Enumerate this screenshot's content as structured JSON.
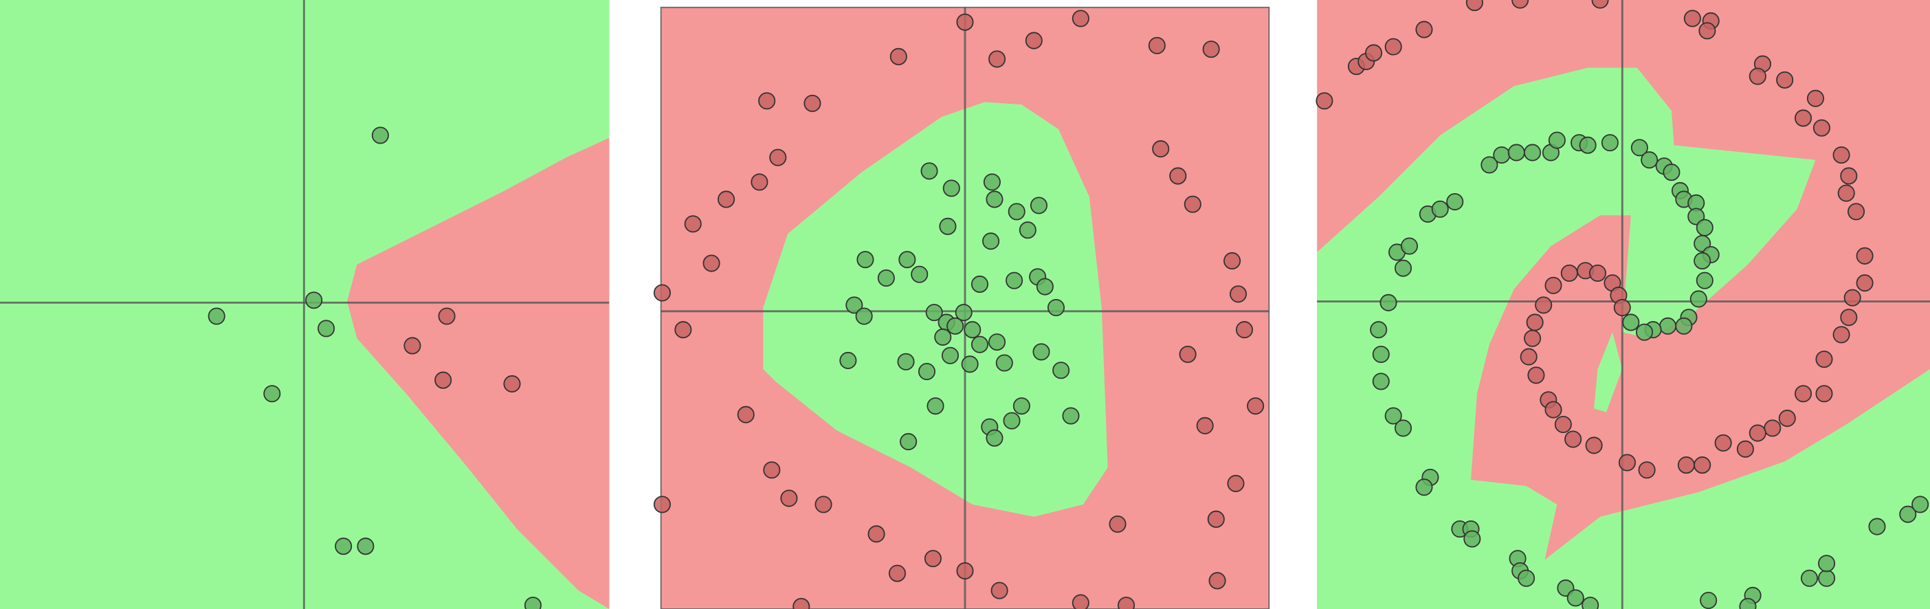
{
  "chart_data": [
    {
      "type": "scatter",
      "xlim": [
        -247,
        248
      ],
      "ylim": [
        -249,
        246
      ],
      "series": [
        {
          "color": "#64b464",
          "x": [
            62,
            8,
            18,
            -71,
            -26,
            32,
            50,
            186
          ],
          "values": [
            136,
            2,
            -21,
            -11,
            -74,
            -198,
            -198,
            -246
          ]
        },
        {
          "color": "#c86464",
          "x": [
            116,
            88,
            113,
            169
          ],
          "values": [
            -11,
            -35,
            -63,
            -66
          ]
        }
      ]
    },
    {
      "type": "scatter",
      "xlim": [
        -247,
        247
      ],
      "ylim": [
        -242,
        247
      ],
      "series": [
        {
          "color": "#c86464",
          "x": [
            0,
            94,
            -54,
            26,
            56,
            156,
            200,
            -161,
            -124,
            -152,
            -167,
            -194,
            -221,
            -206,
            159,
            173,
            185,
            217,
            222,
            227,
            -246,
            -229,
            181,
            236,
            -178,
            195,
            -157,
            -143,
            -115,
            -246,
            220,
            204,
            124,
            -72,
            -26,
            0,
            -55,
            28,
            205,
            94,
            131,
            -133
          ],
          "values": [
            235,
            238,
            207,
            205,
            220,
            216,
            213,
            171,
            169,
            125,
            105,
            91,
            71,
            39,
            132,
            110,
            87,
            41,
            14,
            -15,
            15,
            -15,
            -35,
            -77,
            -84,
            -93,
            -129,
            -152,
            -157,
            -157,
            -140,
            -169,
            -173,
            -181,
            -201,
            -211,
            -213,
            -227,
            -219,
            -237,
            -239,
            -240
          ]
        },
        {
          "color": "#64b464",
          "x": [
            -29,
            22,
            -11,
            24,
            60,
            42,
            -14,
            51,
            21,
            -81,
            -47,
            -64,
            -37,
            59,
            65,
            40,
            12,
            -90,
            -82,
            74,
            -25,
            -1,
            -15,
            -8,
            6,
            -18,
            12,
            26,
            -95,
            -48,
            -12,
            4,
            62,
            32,
            -31,
            78,
            -24,
            46,
            38,
            86,
            20,
            24,
            -46
          ],
          "values": [
            114,
            105,
            100,
            91,
            86,
            81,
            69,
            66,
            57,
            42,
            42,
            27,
            30,
            28,
            20,
            25,
            22,
            5,
            -4,
            3,
            -1,
            -1,
            -9,
            -12,
            -15,
            -21,
            -27,
            -25,
            -40,
            -41,
            -36,
            -43,
            -33,
            -42,
            -49,
            -48,
            -77,
            -77,
            -89,
            -85,
            -94,
            -103,
            -106
          ]
        }
      ]
    },
    {
      "type": "scatter",
      "xlim": [
        -248,
        250
      ],
      "ylim": [
        -250,
        245
      ],
      "series": [
        {
          "color": "#c86464",
          "x": [
            -242,
            -216,
            -208,
            -202,
            -186,
            -161,
            -120,
            -83,
            -18,
            57,
            72,
            69,
            114,
            110,
            132,
            157,
            147,
            162,
            178,
            184,
            182,
            190,
            197,
            197,
            187,
            184,
            178,
            164,
            164,
            147,
            134,
            122,
            110,
            100,
            82,
            65,
            52,
            20,
            4,
            -43,
            -30,
            -20,
            -8,
            -3,
            0,
            -56,
            -64,
            -71,
            -73,
            -76,
            -70,
            -60,
            -56,
            -48,
            -40,
            -23
          ],
          "values": [
            163,
            191,
            195,
            202,
            207,
            221,
            243,
            245,
            245,
            230,
            228,
            220,
            193,
            183,
            180,
            165,
            149,
            141,
            119,
            102,
            88,
            73,
            37,
            15,
            3,
            -13,
            -27,
            -47,
            -75,
            -75,
            -95,
            -103,
            -107,
            -120,
            -115,
            -133,
            -133,
            -137,
            -131,
            23,
            25,
            23,
            15,
            5,
            -5,
            13,
            -3,
            -17,
            -30,
            -45,
            -60,
            -80,
            -88,
            -100,
            -112,
            -117
          ]
        },
        {
          "color": "#64b464",
          "x": [
            -190,
            -198,
            -196,
            -196,
            -186,
            -178,
            -156,
            -161,
            -132,
            -123,
            -122,
            -85,
            -83,
            -78,
            -46,
            -38,
            -26,
            70,
            106,
            102,
            152,
            166,
            166,
            207,
            232,
            242,
            -183,
            -178,
            -173,
            -158,
            -148,
            -136,
            -108,
            -98,
            -86,
            -73,
            -58,
            -53,
            -35,
            -28,
            -10,
            14,
            22,
            34,
            40,
            47,
            50,
            60,
            60,
            67,
            65,
            72,
            65,
            67,
            62,
            54,
            50,
            37,
            25,
            18,
            7
          ],
          "values": [
            -1,
            -23,
            -43,
            -65,
            -93,
            -103,
            -143,
            -151,
            -185,
            -185,
            -193,
            -209,
            -219,
            -225,
            -233,
            -241,
            -247,
            -243,
            -239,
            -248,
            -225,
            -225,
            -213,
            -183,
            -173,
            -165,
            40,
            27,
            45,
            71,
            75,
            81,
            111,
            119,
            121,
            121,
            121,
            131,
            129,
            127,
            129,
            125,
            115,
            110,
            105,
            90,
            83,
            80,
            69,
            60,
            47,
            38,
            33,
            17,
            2,
            -13,
            -20,
            -20,
            -23,
            -25,
            -17
          ]
        }
      ]
    }
  ]
}
